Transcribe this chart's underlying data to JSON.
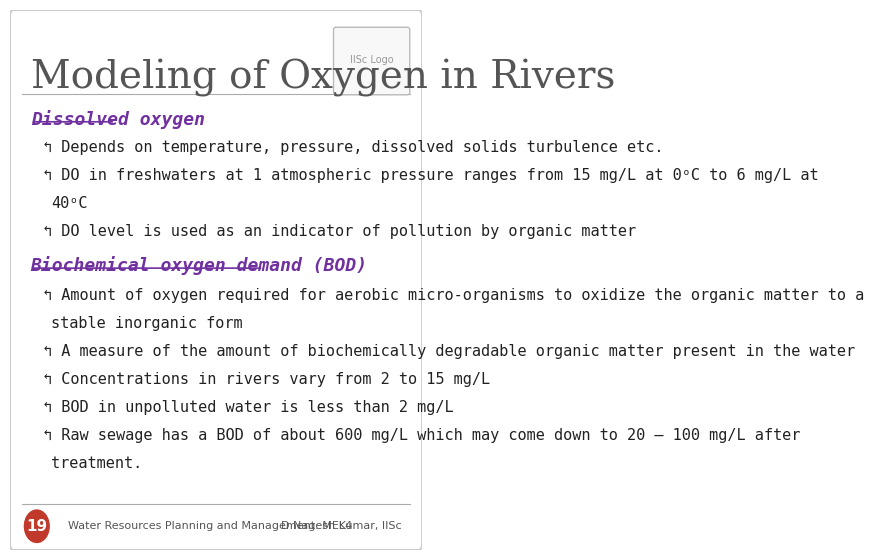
{
  "title": "Modeling of Oxygen in Rivers",
  "title_fontsize": 28,
  "title_color": "#555555",
  "title_font": "serif",
  "bg_color": "#ffffff",
  "slide_border_color": "#cccccc",
  "header1": "Dissolved oxygen",
  "header1_color": "#7030a0",
  "header1_fontsize": 13,
  "header2": "Biochemical oxygen demand (BOD)",
  "header2_color": "#7030a0",
  "header2_fontsize": 13,
  "bullet_symbol": "↰",
  "text_color": "#222222",
  "text_fontsize": 11,
  "body_font": "monospace",
  "bullets_section1": [
    "Depends on temperature, pressure, dissolved solids turbulence etc.",
    "DO in freshwaters at 1 atmospheric pressure ranges from 15 mg/L at 0ᵒC to 6 mg/L at",
    "    40ᵒC",
    "DO level is used as an indicator of pollution by organic matter"
  ],
  "bullets_section1_indent": [
    false,
    false,
    true,
    false
  ],
  "bullets_section2": [
    "Amount of oxygen required for aerobic micro-organisms to oxidize the organic matter to a",
    "    stable inorganic form",
    "A measure of the amount of biochemically degradable organic matter present in the water",
    "Concentrations in rivers vary from 2 to 15 mg/L",
    "BOD in unpolluted water is less than 2 mg/L",
    "Raw sewage has a BOD of about 600 mg/L which may come down to 20 – 100 mg/L after",
    "    treatment."
  ],
  "bullets_section2_indent": [
    false,
    true,
    false,
    false,
    false,
    false,
    true
  ],
  "footer_left": "Water Resources Planning and Management: MEL4",
  "footer_right": "D Nagesh Kumar, IISc",
  "footer_fontsize": 8,
  "footer_color": "#555555",
  "page_number": "19",
  "page_circle_color": "#c0392b",
  "page_number_fontsize": 11
}
